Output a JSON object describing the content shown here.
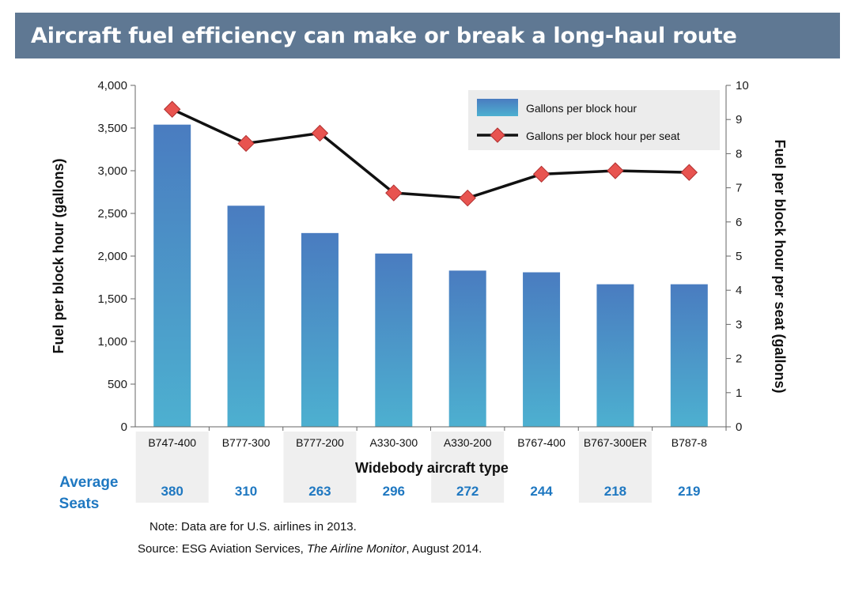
{
  "title": "Aircraft fuel efficiency can make or break a long-haul route",
  "chart_data": {
    "type": "bar",
    "categories": [
      "B747-400",
      "B777-300",
      "B777-200",
      "A330-300",
      "A330-200",
      "B767-400",
      "B767-300ER",
      "B787-8"
    ],
    "series": [
      {
        "name": "Gallons per block hour",
        "type": "bar",
        "axis": "left",
        "values": [
          3540,
          2590,
          2270,
          2030,
          1830,
          1810,
          1670,
          1670
        ]
      },
      {
        "name": "Gallons per block hour per seat",
        "type": "line",
        "axis": "right",
        "values": [
          9.3,
          8.3,
          8.6,
          6.85,
          6.7,
          7.4,
          7.5,
          7.45
        ]
      }
    ],
    "xlabel": "Widebody aircraft type",
    "ylabel": "Fuel per block hour (gallons)",
    "y2label": "Fuel per block hour per seat (gallons)",
    "ylim": [
      0,
      4000
    ],
    "y2lim": [
      0,
      10
    ],
    "y_ticks": [
      "0",
      "500",
      "1,000",
      "1,500",
      "2,000",
      "2,500",
      "3,000",
      "3,500",
      "4,000"
    ],
    "y2_ticks": [
      "0",
      "1",
      "2",
      "3",
      "4",
      "5",
      "6",
      "7",
      "8",
      "9",
      "10"
    ],
    "legend_position": "top-right",
    "grid": false,
    "average_seats_label": "Average Seats",
    "average_seats": [
      "380",
      "310",
      "263",
      "296",
      "272",
      "244",
      "218",
      "219"
    ]
  },
  "notes": {
    "note": "Note:  Data are for U.S. airlines in 2013.",
    "source_prefix": "Source:  ESG Aviation Services, ",
    "source_italic": "The Airline Monitor",
    "source_suffix": ", August 2014."
  },
  "colors": {
    "title_bg": "#5f7893",
    "bar_top": "#4a7cc0",
    "bar_bottom": "#4db0d0",
    "line": "#111111",
    "marker": "#e85450",
    "seat_text": "#1f78c1",
    "band": "#efefef"
  }
}
